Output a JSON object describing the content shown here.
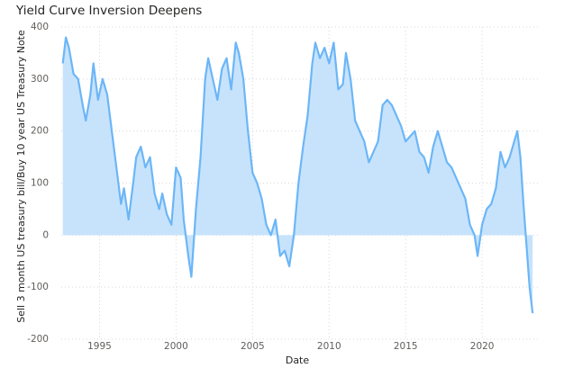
{
  "chart_data": {
    "type": "area",
    "title": "Yield Curve Inversion Deepens",
    "x_label": "Date",
    "y_label": "Sell 3 month US treasury bill/Buy 10 year US Treasury Note",
    "x": [
      1992.6,
      1992.8,
      1993.0,
      1993.3,
      1993.6,
      1993.9,
      1994.1,
      1994.4,
      1994.6,
      1994.9,
      1995.2,
      1995.5,
      1995.8,
      1996.1,
      1996.4,
      1996.6,
      1996.9,
      1997.2,
      1997.4,
      1997.7,
      1998.0,
      1998.3,
      1998.6,
      1998.9,
      1999.1,
      1999.4,
      1999.7,
      2000.0,
      2000.3,
      2000.5,
      2000.8,
      2001.0,
      2001.3,
      2001.6,
      2001.9,
      2002.1,
      2002.4,
      2002.7,
      2003.0,
      2003.3,
      2003.6,
      2003.9,
      2004.1,
      2004.4,
      2004.7,
      2005.0,
      2005.3,
      2005.6,
      2005.9,
      2006.2,
      2006.5,
      2006.8,
      2007.1,
      2007.4,
      2007.7,
      2008.0,
      2008.3,
      2008.6,
      2008.9,
      2009.1,
      2009.4,
      2009.7,
      2010.0,
      2010.3,
      2010.6,
      2010.9,
      2011.1,
      2011.4,
      2011.7,
      2012.0,
      2012.3,
      2012.6,
      2012.9,
      2013.2,
      2013.5,
      2013.8,
      2014.1,
      2014.4,
      2014.7,
      2015.0,
      2015.3,
      2015.6,
      2015.9,
      2016.2,
      2016.5,
      2016.8,
      2017.1,
      2017.4,
      2017.7,
      2018.0,
      2018.3,
      2018.6,
      2018.9,
      2019.2,
      2019.5,
      2019.7,
      2020.0,
      2020.3,
      2020.6,
      2020.9,
      2021.2,
      2021.5,
      2021.8,
      2022.0,
      2022.3,
      2022.5,
      2022.7,
      2022.9,
      2023.1,
      2023.3
    ],
    "values": [
      330,
      380,
      360,
      310,
      300,
      250,
      220,
      270,
      330,
      260,
      300,
      270,
      200,
      130,
      60,
      90,
      30,
      100,
      150,
      170,
      130,
      150,
      80,
      50,
      80,
      40,
      20,
      130,
      110,
      30,
      -40,
      -80,
      50,
      150,
      300,
      340,
      300,
      260,
      320,
      340,
      280,
      370,
      350,
      300,
      200,
      120,
      100,
      70,
      20,
      0,
      30,
      -40,
      -30,
      -60,
      0,
      100,
      170,
      230,
      330,
      370,
      340,
      360,
      330,
      370,
      280,
      290,
      350,
      300,
      220,
      200,
      180,
      140,
      160,
      180,
      250,
      260,
      250,
      230,
      210,
      180,
      190,
      200,
      160,
      150,
      120,
      170,
      200,
      170,
      140,
      130,
      110,
      90,
      70,
      20,
      0,
      -40,
      20,
      50,
      60,
      90,
      160,
      130,
      150,
      170,
      200,
      150,
      60,
      -20,
      -100,
      -150
    ],
    "color": "#6cb6f7",
    "area_color": "#c7e3fc",
    "xlim": [
      1992.5,
      2023.7
    ],
    "xticks": [
      1995,
      2000,
      2005,
      2010,
      2015,
      2020
    ],
    "ylim": [
      -200,
      400
    ],
    "yticks": [
      -200,
      -100,
      0,
      100,
      200,
      300,
      400
    ],
    "grid": true
  }
}
